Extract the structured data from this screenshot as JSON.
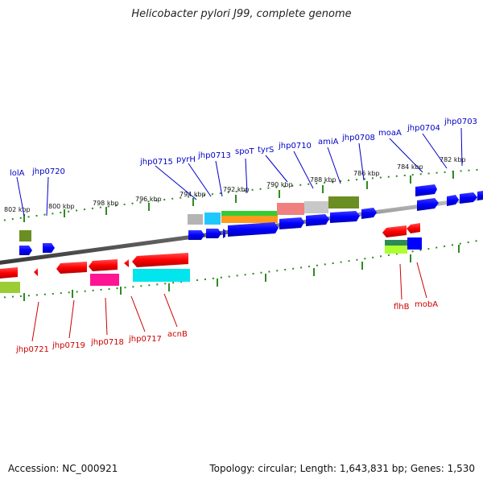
{
  "title": "Helicobacter pylori J99, complete genome",
  "accession": "Accession: NC_000921",
  "summary": "Topology: circular; Length: 1,643,831 bp; Genes: 1,530",
  "colors": {
    "forward_label": "#0000c8",
    "reverse_label": "#cc0000",
    "tick": "#2e8b20",
    "backbone": "#7a7a7a",
    "cds_forward": "#0000ff",
    "cds_reverse": "#ff0000"
  },
  "ruler": [
    {
      "label": "802 kbp"
    },
    {
      "label": "800 kbp"
    },
    {
      "label": "798 kbp"
    },
    {
      "label": "796 kbp"
    },
    {
      "label": "794 kbp"
    },
    {
      "label": "792 kbp"
    },
    {
      "label": "790 kbp"
    },
    {
      "label": "788 kbp"
    },
    {
      "label": "786 kbp"
    },
    {
      "label": "784 kbp"
    },
    {
      "label": "782 kbp"
    }
  ],
  "forward_genes": [
    {
      "label": "lolA"
    },
    {
      "label": "jhp0720"
    },
    {
      "label": "jhp0715"
    },
    {
      "label": "pyrH"
    },
    {
      "label": "jhp0713"
    },
    {
      "label": "spoT"
    },
    {
      "label": "tyrS"
    },
    {
      "label": "jhp0710"
    },
    {
      "label": "amiA"
    },
    {
      "label": "jhp0708"
    },
    {
      "label": "moaA"
    },
    {
      "label": "jhp0704"
    },
    {
      "label": "jhp0703"
    }
  ],
  "reverse_genes": [
    {
      "label": "jhp0721"
    },
    {
      "label": "jhp0719"
    },
    {
      "label": "jhp0718"
    },
    {
      "label": "jhp0717"
    },
    {
      "label": "acnB"
    },
    {
      "label": "flhB"
    },
    {
      "label": "mobA"
    }
  ]
}
